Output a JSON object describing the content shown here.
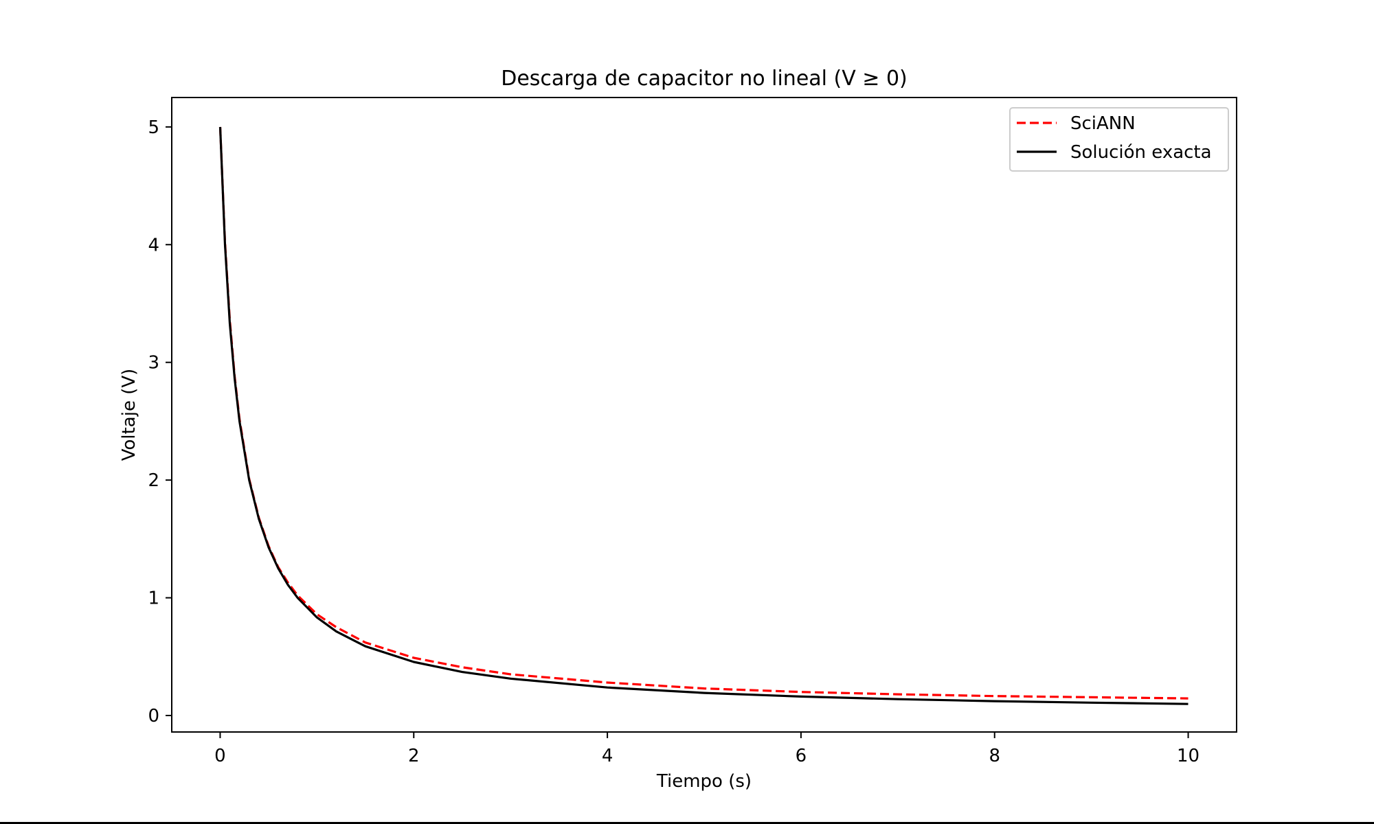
{
  "chart_data": {
    "type": "line",
    "title": "Descarga de capacitor no lineal (V ≥ 0)",
    "xlabel": "Tiempo (s)",
    "ylabel": "Voltaje (V)",
    "xlim": [
      -0.5,
      10.5
    ],
    "ylim": [
      -0.14,
      5.25
    ],
    "xticks": [
      0,
      2,
      4,
      6,
      8,
      10
    ],
    "yticks": [
      0,
      1,
      2,
      3,
      4,
      5
    ],
    "grid": false,
    "legend_position": "top-right",
    "series": [
      {
        "name": "SciANN",
        "color": "#ff0000",
        "style": "dashed",
        "x": [
          0,
          0.05,
          0.1,
          0.15,
          0.2,
          0.3,
          0.4,
          0.5,
          0.6,
          0.7,
          0.8,
          1.0,
          1.2,
          1.5,
          2.0,
          2.5,
          3.0,
          4.0,
          5.0,
          6.0,
          7.0,
          8.0,
          9.0,
          10.0
        ],
        "y": [
          5.0,
          4.02,
          3.36,
          2.88,
          2.52,
          2.01,
          1.68,
          1.44,
          1.26,
          1.13,
          1.02,
          0.86,
          0.75,
          0.62,
          0.49,
          0.41,
          0.35,
          0.28,
          0.23,
          0.2,
          0.18,
          0.165,
          0.155,
          0.145
        ]
      },
      {
        "name": "Solución exacta",
        "color": "#000000",
        "style": "solid",
        "x": [
          0,
          0.05,
          0.1,
          0.15,
          0.2,
          0.3,
          0.4,
          0.5,
          0.6,
          0.7,
          0.8,
          1.0,
          1.2,
          1.5,
          2.0,
          2.5,
          3.0,
          4.0,
          5.0,
          6.0,
          7.0,
          8.0,
          9.0,
          10.0
        ],
        "y": [
          5.0,
          4.0,
          3.33,
          2.86,
          2.5,
          2.0,
          1.67,
          1.43,
          1.25,
          1.11,
          1.0,
          0.833,
          0.714,
          0.588,
          0.455,
          0.37,
          0.313,
          0.238,
          0.192,
          0.161,
          0.139,
          0.122,
          0.109,
          0.098
        ]
      }
    ]
  }
}
